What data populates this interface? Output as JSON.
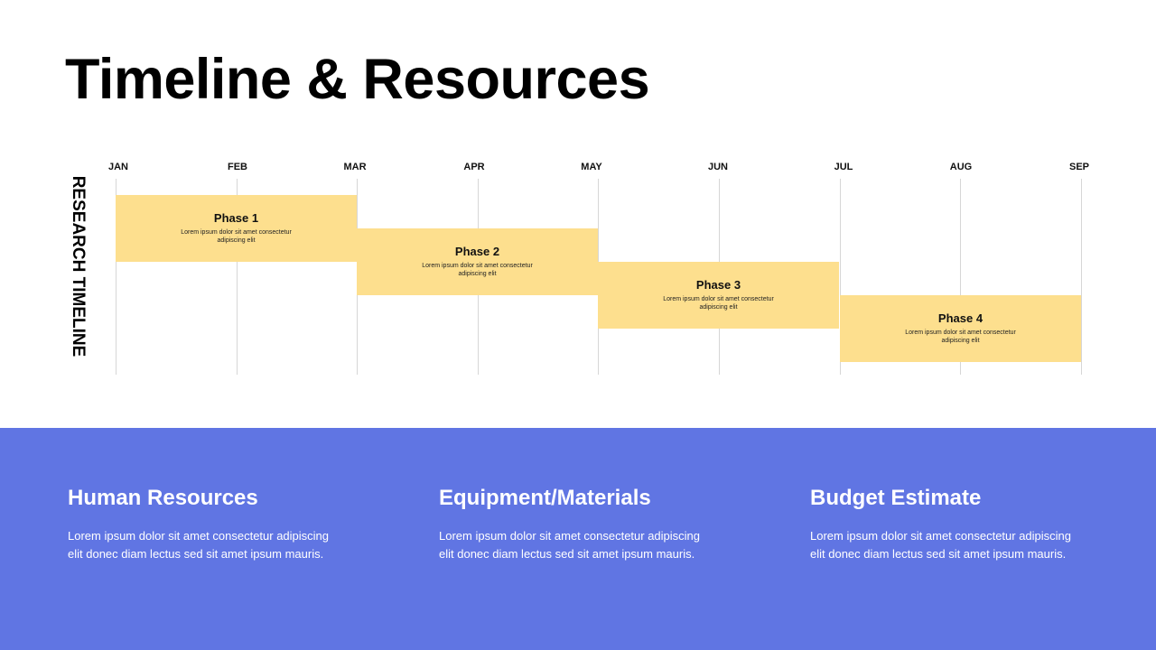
{
  "header": {
    "title": "Timeline & Resources"
  },
  "timeline": {
    "side_label": "RESEARCH TIMELINE",
    "months": [
      "JAN",
      "FEB",
      "MAR",
      "APR",
      "MAY",
      "JUN",
      "JUL",
      "AUG",
      "SEP"
    ],
    "phases": [
      {
        "title": "Phase 1",
        "text": "Lorem ipsum dolor sit amet consectetur adipiscing elit"
      },
      {
        "title": "Phase 2",
        "text": "Lorem ipsum dolor sit amet consectetur adipiscing elit"
      },
      {
        "title": "Phase 3",
        "text": "Lorem ipsum dolor sit amet consectetur adipiscing elit"
      },
      {
        "title": "Phase 4",
        "text": "Lorem ipsum dolor sit amet consectetur adipiscing elit"
      }
    ]
  },
  "resources": [
    {
      "heading": "Human Resources",
      "text": "Lorem ipsum dolor sit amet consectetur adipiscing elit donec diam lectus sed sit amet ipsum mauris."
    },
    {
      "heading": "Equipment/Materials",
      "text": "Lorem ipsum dolor sit amet consectetur adipiscing elit donec diam lectus sed sit amet ipsum mauris."
    },
    {
      "heading": "Budget Estimate",
      "text": "Lorem ipsum dolor sit amet consectetur adipiscing elit donec diam lectus sed sit amet ipsum mauris."
    }
  ]
}
